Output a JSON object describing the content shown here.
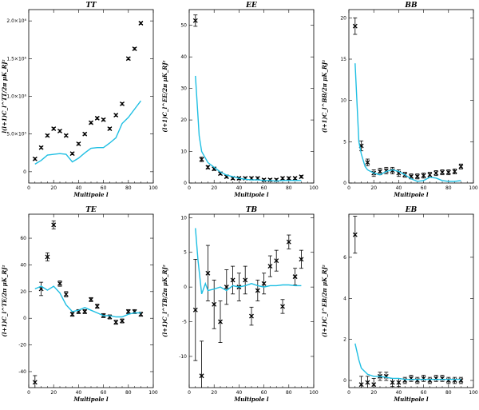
{
  "figure": {
    "xlabel": "Multipole l"
  },
  "colors": {
    "model_line": "#1fbfe3",
    "data_points": "#000000",
    "frame": "#000000"
  },
  "chart_data": [
    {
      "id": "tt",
      "title": "TT",
      "type": "scatter",
      "ylabel": "l(l+1)C_l^TT/2π  μK_RJ²",
      "xlim": [
        0,
        100
      ],
      "ylim": [
        -150000,
        2150000
      ],
      "xticks": [
        0,
        20,
        40,
        60,
        80,
        100
      ],
      "yticks": [
        0,
        500000,
        1000000,
        1500000,
        2000000
      ],
      "yticklabels": [
        "0",
        "5.0×10⁵",
        "1.0×10⁶",
        "1.5×10⁶",
        "2.0×10⁶"
      ],
      "series": [
        {
          "kind": "points",
          "x": [
            5,
            10,
            15,
            20,
            25,
            30,
            35,
            40,
            45,
            50,
            55,
            60,
            65,
            70,
            75,
            80,
            85,
            90
          ],
          "y": [
            170000,
            320000,
            480000,
            570000,
            540000,
            480000,
            240000,
            370000,
            500000,
            650000,
            710000,
            690000,
            570000,
            750000,
            900000,
            1500000,
            1630000,
            1970000
          ],
          "err": [
            15000,
            15000,
            15000,
            15000,
            15000,
            15000,
            15000,
            15000,
            15000,
            15000,
            15000,
            15000,
            15000,
            15000,
            15000,
            15000,
            15000,
            15000
          ]
        },
        {
          "kind": "line",
          "x": [
            5,
            10,
            15,
            20,
            25,
            30,
            35,
            40,
            45,
            50,
            55,
            60,
            65,
            70,
            75,
            80,
            85,
            90
          ],
          "y": [
            100000,
            150000,
            220000,
            230000,
            240000,
            230000,
            130000,
            180000,
            250000,
            310000,
            320000,
            320000,
            380000,
            450000,
            640000,
            720000,
            830000,
            940000
          ]
        }
      ]
    },
    {
      "id": "ee",
      "title": "EE",
      "type": "scatter",
      "ylabel": "(l+1)C_l^EE/2π  μK_RJ²",
      "xlim": [
        0,
        100
      ],
      "ylim": [
        0,
        55
      ],
      "xticks": [
        0,
        20,
        40,
        60,
        80,
        100
      ],
      "yticks": [
        0,
        10,
        20,
        30,
        40,
        50
      ],
      "yticklabels": [
        "0",
        "10",
        "20",
        "30",
        "40",
        "50"
      ],
      "series": [
        {
          "kind": "points",
          "x": [
            5,
            10,
            15,
            20,
            25,
            30,
            35,
            40,
            45,
            50,
            55,
            60,
            65,
            70,
            75,
            80,
            85,
            90
          ],
          "y": [
            51.5,
            7.5,
            5,
            4.5,
            3,
            2,
            1.5,
            1.5,
            1.5,
            1.5,
            1.5,
            1,
            1,
            1,
            1.5,
            1.5,
            1.5,
            2
          ],
          "err": [
            1.8,
            0.7,
            0.5,
            0.5,
            0.4,
            0.4,
            0.4,
            0.4,
            0.4,
            0.4,
            0.4,
            0.4,
            0.4,
            0.4,
            0.4,
            0.4,
            0.4,
            0.4
          ]
        },
        {
          "kind": "line",
          "x": [
            5,
            8,
            10,
            15,
            20,
            25,
            30,
            35,
            40,
            45,
            50,
            55,
            60,
            65,
            70,
            75,
            80,
            85,
            90
          ],
          "y": [
            34,
            15,
            10,
            6.5,
            5,
            3.5,
            2.5,
            2,
            1.5,
            1.2,
            1,
            1,
            0.8,
            0.8,
            0.6,
            0.8,
            0.8,
            0.8,
            0.8
          ]
        }
      ]
    },
    {
      "id": "bb",
      "title": "BB",
      "type": "scatter",
      "ylabel": "(l+1)C_l^BB/2π  μK_RJ²",
      "xlim": [
        0,
        100
      ],
      "ylim": [
        0,
        21
      ],
      "xticks": [
        0,
        20,
        40,
        60,
        80,
        100
      ],
      "yticks": [
        0,
        5,
        10,
        15,
        20
      ],
      "yticklabels": [
        "0",
        "5",
        "10",
        "15",
        "20"
      ],
      "series": [
        {
          "kind": "points",
          "x": [
            5,
            10,
            15,
            20,
            25,
            30,
            35,
            40,
            45,
            50,
            55,
            60,
            65,
            70,
            75,
            80,
            85,
            90
          ],
          "y": [
            19,
            4.5,
            2.5,
            1.2,
            1.4,
            1.5,
            1.5,
            1.2,
            1,
            0.8,
            0.8,
            0.9,
            1,
            1.2,
            1.3,
            1.3,
            1.4,
            2
          ],
          "err": [
            1,
            0.6,
            0.4,
            0.4,
            0.4,
            0.4,
            0.4,
            0.4,
            0.3,
            0.3,
            0.3,
            0.3,
            0.3,
            0.3,
            0.3,
            0.3,
            0.3,
            0.3
          ]
        },
        {
          "kind": "line",
          "x": [
            5,
            8,
            10,
            13,
            15,
            20,
            25,
            30,
            35,
            40,
            45,
            50,
            55,
            60,
            65,
            70,
            75,
            80,
            85,
            90
          ],
          "y": [
            14.5,
            5,
            3.5,
            2,
            1.6,
            1.2,
            1,
            1.4,
            1.6,
            1.4,
            1,
            0.5,
            0.2,
            0.3,
            0.7,
            0.6,
            0.3,
            0.2,
            0.2,
            0.3
          ]
        }
      ]
    },
    {
      "id": "te",
      "title": "TE",
      "type": "scatter",
      "ylabel": "(l+1)C_l^TE/2π  μK_RJ²",
      "xlim": [
        0,
        100
      ],
      "ylim": [
        -52,
        78
      ],
      "xticks": [
        0,
        20,
        40,
        60,
        80,
        100
      ],
      "yticks": [
        -40,
        -20,
        0,
        20,
        40,
        60
      ],
      "yticklabels": [
        "-40",
        "-20",
        "0",
        "20",
        "40",
        "60"
      ],
      "series": [
        {
          "kind": "points",
          "x": [
            5,
            10,
            15,
            20,
            25,
            30,
            35,
            40,
            45,
            50,
            55,
            60,
            65,
            70,
            75,
            80,
            85,
            90
          ],
          "y": [
            -48,
            22,
            46,
            70,
            26,
            18,
            3,
            5,
            5,
            14,
            9,
            2,
            1,
            -3,
            -2,
            5,
            5,
            3
          ],
          "err": [
            5,
            5,
            3,
            3,
            2,
            2,
            1.5,
            1.5,
            1.5,
            1.5,
            1.5,
            1.5,
            1.5,
            1.5,
            1.5,
            1.5,
            1.5,
            1.5
          ]
        },
        {
          "kind": "line",
          "x": [
            5,
            10,
            15,
            20,
            25,
            30,
            35,
            40,
            45,
            50,
            55,
            60,
            65,
            70,
            75,
            80,
            85,
            90
          ],
          "y": [
            22,
            24,
            21,
            24,
            19,
            10,
            5,
            6,
            8,
            6,
            4,
            2,
            2,
            1,
            1,
            3,
            4,
            4
          ]
        }
      ]
    },
    {
      "id": "tb",
      "title": "TB",
      "type": "scatter",
      "ylabel": "(l+1)C_l^TB/2π  μK_RJ²",
      "xlim": [
        0,
        100
      ],
      "ylim": [
        -14.5,
        10.5
      ],
      "xticks": [
        0,
        20,
        40,
        60,
        80,
        100
      ],
      "yticks": [
        -10,
        -5,
        0,
        5,
        10
      ],
      "yticklabels": [
        "-10",
        "-5",
        "0",
        "5",
        "10"
      ],
      "series": [
        {
          "kind": "points",
          "x": [
            5,
            10,
            15,
            20,
            25,
            30,
            35,
            40,
            45,
            50,
            55,
            60,
            65,
            70,
            75,
            80,
            85,
            90
          ],
          "y": [
            -3.3,
            -12.8,
            2,
            -2.5,
            -5,
            0,
            1,
            0,
            1,
            -4.2,
            -0.5,
            0.5,
            3,
            3.8,
            -2.8,
            6.5,
            1.5,
            4
          ],
          "err": [
            7.3,
            5,
            4,
            3.5,
            3,
            2.5,
            2,
            2,
            2,
            1.3,
            1.5,
            1.5,
            1.5,
            1.5,
            1,
            1,
            1.2,
            1.3
          ]
        },
        {
          "kind": "line",
          "x": [
            5,
            7,
            10,
            13,
            15,
            20,
            25,
            30,
            35,
            40,
            45,
            50,
            55,
            60,
            65,
            70,
            75,
            80,
            85,
            90
          ],
          "y": [
            8.5,
            4,
            -1,
            0.5,
            -0.5,
            -0.3,
            0,
            -0.5,
            0.2,
            0,
            0.2,
            0.5,
            0.2,
            0,
            0.2,
            0.2,
            0.3,
            0.3,
            0.2,
            0.2
          ]
        }
      ]
    },
    {
      "id": "eb",
      "title": "EB",
      "type": "scatter",
      "ylabel": "(l+1)C_l^EB/2π  μK_RJ²",
      "xlim": [
        0,
        100
      ],
      "ylim": [
        -0.35,
        8.1
      ],
      "xticks": [
        0,
        20,
        40,
        60,
        80,
        100
      ],
      "yticks": [
        0,
        2,
        4,
        6
      ],
      "yticklabels": [
        "0",
        "2",
        "4",
        "6"
      ],
      "series": [
        {
          "kind": "points",
          "x": [
            5,
            10,
            15,
            20,
            25,
            30,
            35,
            40,
            45,
            50,
            55,
            60,
            65,
            70,
            75,
            80,
            85,
            90
          ],
          "y": [
            7.1,
            -0.2,
            -0.1,
            -0.2,
            0.2,
            0.2,
            -0.1,
            -0.1,
            0,
            0.1,
            0,
            0.1,
            0,
            0.1,
            0.1,
            0,
            0,
            0
          ],
          "err": [
            0.9,
            0.4,
            0.3,
            0.3,
            0.2,
            0.2,
            0.2,
            0.2,
            0.15,
            0.15,
            0.15,
            0.15,
            0.15,
            0.15,
            0.15,
            0.15,
            0.15,
            0.15
          ]
        },
        {
          "kind": "line",
          "x": [
            5,
            8,
            10,
            15,
            20,
            25,
            30,
            35,
            40,
            45,
            50,
            55,
            60,
            65,
            70,
            75,
            80,
            85,
            90
          ],
          "y": [
            1.8,
            1,
            0.6,
            0.3,
            0.2,
            0.2,
            0.15,
            0.1,
            0.1,
            0.05,
            0.05,
            0.05,
            0.05,
            0.05,
            0.05,
            0.05,
            0.05,
            0.05,
            0.05
          ]
        }
      ]
    }
  ]
}
